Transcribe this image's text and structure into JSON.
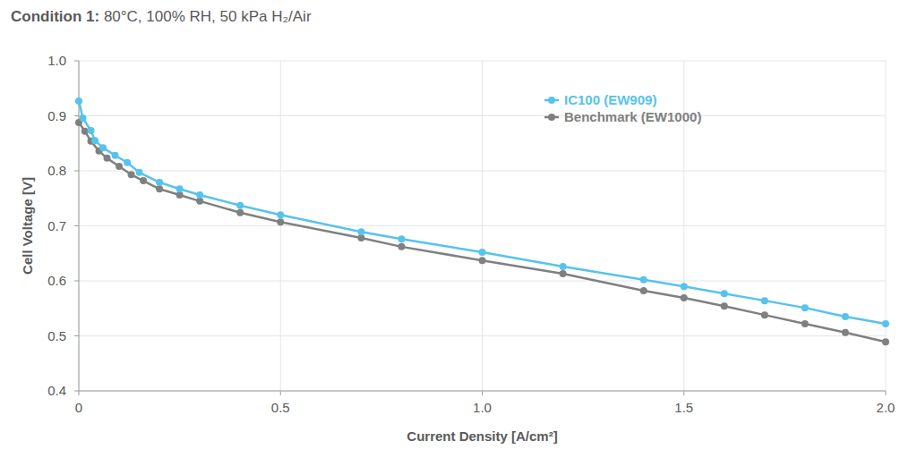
{
  "chart_data": {
    "type": "line",
    "title": "Condition 1: 80°C, 100% RH, 50 kPa H₂/Air",
    "x_label": "Current Density [A/cm²]",
    "y_label": "Cell Voltage [V]",
    "xlim": [
      0,
      2
    ],
    "ylim": [
      0.4,
      1
    ],
    "xticks": [
      0,
      0.5,
      {
        "value": 1,
        "label": "1.0"
      },
      1.5,
      {
        "value": 2,
        "label": "2.0"
      }
    ],
    "yticks": [
      0.4,
      0.5,
      0.6,
      0.7,
      0.8,
      0.9,
      {
        "value": 1,
        "label": "1.0"
      }
    ],
    "grid": true,
    "legend": "top-right",
    "marker": "circle",
    "series": [
      {
        "name": "IC100 (EW909)",
        "color": "#56c3ec",
        "x": [
          0,
          0.01,
          0.03,
          0.04,
          0.06,
          0.09,
          0.12,
          0.15,
          0.2,
          0.25,
          0.3,
          0.4,
          0.5,
          0.7,
          0.8,
          1.0,
          1.2,
          1.4,
          1.5,
          1.6,
          1.7,
          1.8,
          1.9,
          2.0
        ],
        "values": [
          0.927,
          0.896,
          0.873,
          0.855,
          0.842,
          0.828,
          0.815,
          0.797,
          0.779,
          0.767,
          0.756,
          0.737,
          0.72,
          0.689,
          0.676,
          0.652,
          0.626,
          0.602,
          0.59,
          0.577,
          0.564,
          0.551,
          0.535,
          0.522
        ]
      },
      {
        "name": "Benchmark (EW1000)",
        "color": "#808080",
        "x": [
          0,
          0.015,
          0.03,
          0.05,
          0.07,
          0.1,
          0.13,
          0.16,
          0.2,
          0.25,
          0.3,
          0.4,
          0.5,
          0.7,
          0.8,
          1.0,
          1.2,
          1.4,
          1.5,
          1.6,
          1.7,
          1.8,
          1.9,
          2.0
        ],
        "values": [
          0.888,
          0.872,
          0.854,
          0.836,
          0.823,
          0.808,
          0.793,
          0.782,
          0.767,
          0.756,
          0.745,
          0.724,
          0.707,
          0.678,
          0.662,
          0.637,
          0.613,
          0.582,
          0.569,
          0.554,
          0.538,
          0.522,
          0.506,
          0.489
        ]
      }
    ]
  }
}
